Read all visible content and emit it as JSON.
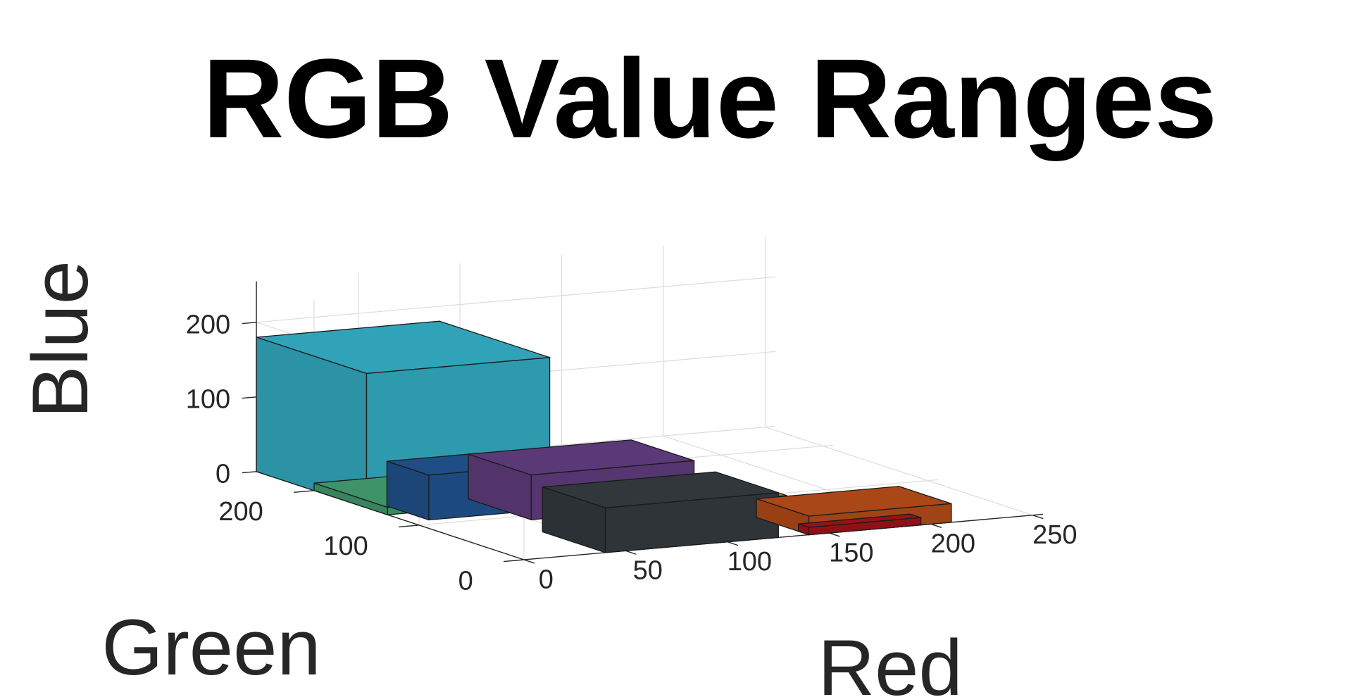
{
  "chart_data": {
    "type": "bar3d",
    "title": "RGB Value Ranges",
    "xlabel": "Red",
    "ylabel": "Green",
    "zlabel": "Blue",
    "x_ticks": [
      0,
      50,
      100,
      150,
      200,
      250
    ],
    "y_ticks": [
      0,
      100,
      200
    ],
    "z_ticks": [
      0,
      100,
      200
    ],
    "xlim": [
      0,
      255
    ],
    "ylim": [
      0,
      255
    ],
    "zlim": [
      0,
      255
    ],
    "grid": true,
    "boxes": [
      {
        "color": "#3B8B63",
        "red": [
          0,
          40
        ],
        "green": [
          130,
          200
        ],
        "blue": [
          0,
          10
        ]
      },
      {
        "color": "#2E9AAE",
        "red": [
          0,
          90
        ],
        "green": [
          150,
          255
        ],
        "blue": [
          0,
          180
        ]
      },
      {
        "color": "#1D4A7E",
        "red": [
          10,
          55
        ],
        "green": [
          110,
          150
        ],
        "blue": [
          0,
          60
        ]
      },
      {
        "color": "#2E3438",
        "red": [
          40,
          125
        ],
        "green": [
          0,
          60
        ],
        "blue": [
          0,
          60
        ]
      },
      {
        "color": "#563670",
        "red": [
          50,
          130
        ],
        "green": [
          90,
          150
        ],
        "blue": [
          0,
          60
        ]
      },
      {
        "color": "#A07C12",
        "red": [
          100,
          160
        ],
        "green": [
          60,
          120
        ],
        "blue": [
          0,
          20
        ]
      },
      {
        "color": "#A04315",
        "red": [
          140,
          210
        ],
        "green": [
          0,
          50
        ],
        "blue": [
          0,
          25
        ]
      },
      {
        "color": "#8E1116",
        "red": [
          140,
          195
        ],
        "green": [
          0,
          10
        ],
        "blue": [
          0,
          10
        ]
      }
    ]
  }
}
